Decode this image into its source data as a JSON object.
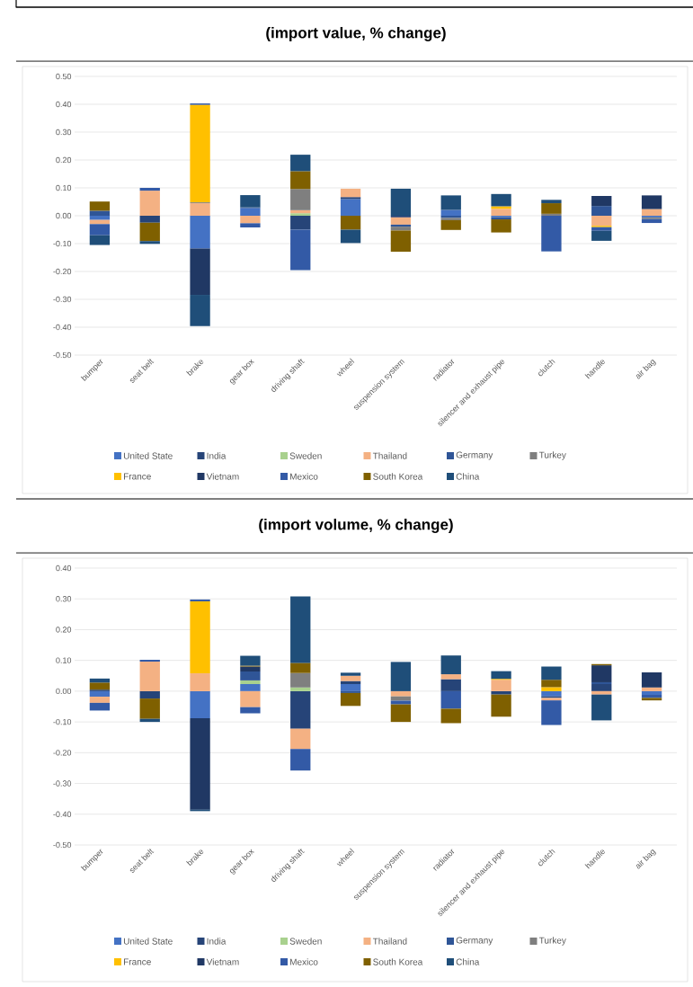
{
  "chart_data": [
    {
      "type": "bar",
      "stacked": true,
      "title": "(import value, % change)",
      "grid": "y",
      "legend": "bottom",
      "categories": [
        "bumper",
        "seat belt",
        "brake",
        "gear box",
        "driving shaft",
        "wheel",
        "suspension system",
        "radiator",
        "silencer and exhaust pipe",
        "clutch",
        "handle",
        "air bag"
      ],
      "ylim": [
        -0.5,
        0.5
      ],
      "yticks": [
        {
          "value": -0.5,
          "label": "-0.50"
        },
        {
          "value": -0.4,
          "label": "-0.40"
        },
        {
          "value": -0.3,
          "label": "-0.30"
        },
        {
          "value": -0.2,
          "label": "-0.20"
        },
        {
          "value": -0.1,
          "label": "-0.10"
        },
        {
          "value": 0,
          "label": "0.00"
        },
        {
          "value": 0.1,
          "label": "0.10"
        },
        {
          "value": 0.2,
          "label": "0.20"
        },
        {
          "value": 0.3,
          "label": "0.30"
        },
        {
          "value": 0.4,
          "label": "0.40"
        },
        {
          "value": 0.5,
          "label": "0.50"
        }
      ],
      "series": [
        {
          "name": "United State",
          "color": "#4472c4",
          "values": [
            -0.015,
            null,
            -0.118,
            0.027,
            null,
            0.06,
            null,
            0.021,
            -0.005,
            null,
            null,
            -0.006
          ]
        },
        {
          "name": "India",
          "color": "#264478",
          "values": [
            null,
            -0.025,
            null,
            null,
            -0.05,
            0.007,
            -0.006,
            null,
            null,
            null,
            null,
            null
          ]
        },
        {
          "name": "Sweden",
          "color": "#a9d18e",
          "values": [
            null,
            null,
            null,
            null,
            0.009,
            null,
            null,
            null,
            null,
            null,
            null,
            null
          ]
        },
        {
          "name": "Thailand",
          "color": "#f4b183",
          "values": [
            -0.015,
            0.09,
            0.045,
            -0.027,
            0.011,
            0.03,
            -0.026,
            null,
            0.025,
            null,
            -0.036,
            0.024
          ]
        },
        {
          "name": "Germany",
          "color": "#2f5597",
          "values": [
            0.018,
            null,
            null,
            0.003,
            null,
            null,
            -0.007,
            -0.008,
            -0.008,
            null,
            0.035,
            null
          ]
        },
        {
          "name": "Turkey",
          "color": "#7f7f7f",
          "values": [
            null,
            null,
            0.003,
            null,
            0.076,
            null,
            -0.014,
            -0.008,
            null,
            0.007,
            null,
            -0.006
          ]
        },
        {
          "name": "France",
          "color": "#ffc000",
          "values": [
            null,
            null,
            0.35,
            null,
            null,
            null,
            null,
            null,
            0.009,
            null,
            -0.005,
            null
          ]
        },
        {
          "name": "Vietnam",
          "color": "#203864",
          "values": [
            null,
            null,
            -0.166,
            null,
            null,
            null,
            null,
            null,
            null,
            null,
            0.036,
            0.049
          ]
        },
        {
          "name": "Mexico",
          "color": "#335aa6",
          "values": [
            -0.04,
            0.01,
            0.005,
            -0.015,
            -0.145,
            null,
            null,
            null,
            null,
            -0.128,
            -0.013,
            -0.014
          ]
        },
        {
          "name": "South Korea",
          "color": "#7f6000",
          "values": [
            0.033,
            -0.066,
            null,
            null,
            0.064,
            -0.05,
            -0.076,
            -0.035,
            -0.047,
            0.038,
            null,
            null
          ]
        },
        {
          "name": "China",
          "color": "#1f4e79",
          "values": [
            -0.035,
            -0.01,
            -0.112,
            0.044,
            0.059,
            -0.048,
            0.097,
            0.052,
            0.044,
            0.012,
            -0.036,
            null
          ]
        }
      ]
    },
    {
      "type": "bar",
      "stacked": true,
      "title": "(import volume, % change)",
      "grid": "y",
      "legend": "bottom",
      "categories": [
        "bumper",
        "seat belt",
        "brake",
        "gear box",
        "driving shaft",
        "wheel",
        "suspension system",
        "radiator",
        "silencer and exhaust pipe",
        "clutch",
        "handle",
        "air bag"
      ],
      "ylim": [
        -0.5,
        0.4
      ],
      "yticks": [
        {
          "value": -0.5,
          "label": "-0.50"
        },
        {
          "value": -0.4,
          "label": "-0.40"
        },
        {
          "value": -0.3,
          "label": "-0.30"
        },
        {
          "value": -0.2,
          "label": "-0.20"
        },
        {
          "value": -0.1,
          "label": "-0.10"
        },
        {
          "value": 0,
          "label": "0.00"
        },
        {
          "value": 0.1,
          "label": "0.10"
        },
        {
          "value": 0.2,
          "label": "0.20"
        },
        {
          "value": 0.3,
          "label": "0.30"
        },
        {
          "value": 0.4,
          "label": "0.40"
        }
      ],
      "series": [
        {
          "name": "United State",
          "color": "#4472c4",
          "values": [
            -0.018,
            null,
            -0.088,
            0.023,
            null,
            0.023,
            null,
            null,
            null,
            -0.017,
            null,
            -0.012
          ]
        },
        {
          "name": "India",
          "color": "#264478",
          "values": [
            0.005,
            -0.024,
            null,
            null,
            -0.122,
            0.01,
            null,
            0.039,
            -0.011,
            -0.005,
            0.023,
            null
          ]
        },
        {
          "name": "Sweden",
          "color": "#a9d18e",
          "values": [
            null,
            null,
            null,
            0.012,
            0.012,
            null,
            null,
            null,
            null,
            null,
            null,
            null
          ]
        },
        {
          "name": "Thailand",
          "color": "#f4b183",
          "values": [
            -0.02,
            0.096,
            0.058,
            -0.052,
            -0.066,
            0.017,
            -0.017,
            0.016,
            0.037,
            -0.008,
            -0.011,
            0.012
          ]
        },
        {
          "name": "Germany",
          "color": "#2f5597",
          "values": [
            null,
            null,
            null,
            0.029,
            null,
            -0.006,
            null,
            null,
            null,
            null,
            0.006,
            null
          ]
        },
        {
          "name": "Turkey",
          "color": "#7f7f7f",
          "values": [
            null,
            null,
            null,
            null,
            0.047,
            null,
            -0.014,
            null,
            null,
            null,
            null,
            null
          ]
        },
        {
          "name": "France",
          "color": "#ffc000",
          "values": [
            null,
            null,
            0.234,
            null,
            null,
            null,
            null,
            null,
            0.003,
            0.013,
            null,
            null
          ]
        },
        {
          "name": "Vietnam",
          "color": "#203864",
          "values": [
            null,
            null,
            -0.297,
            0.016,
            null,
            null,
            null,
            null,
            null,
            null,
            0.055,
            0.049
          ]
        },
        {
          "name": "Mexico",
          "color": "#335aa6",
          "values": [
            -0.025,
            0.006,
            0.006,
            -0.02,
            -0.07,
            null,
            -0.012,
            -0.057,
            null,
            -0.08,
            null,
            -0.01
          ]
        },
        {
          "name": "South Korea",
          "color": "#7f6000",
          "values": [
            0.023,
            -0.066,
            null,
            0.003,
            0.033,
            -0.042,
            -0.057,
            -0.047,
            -0.072,
            0.024,
            0.004,
            -0.008
          ]
        },
        {
          "name": "China",
          "color": "#1f4e79",
          "values": [
            0.013,
            -0.01,
            -0.005,
            0.032,
            0.216,
            0.01,
            0.095,
            0.061,
            0.025,
            0.043,
            -0.084,
            null
          ]
        }
      ]
    }
  ]
}
